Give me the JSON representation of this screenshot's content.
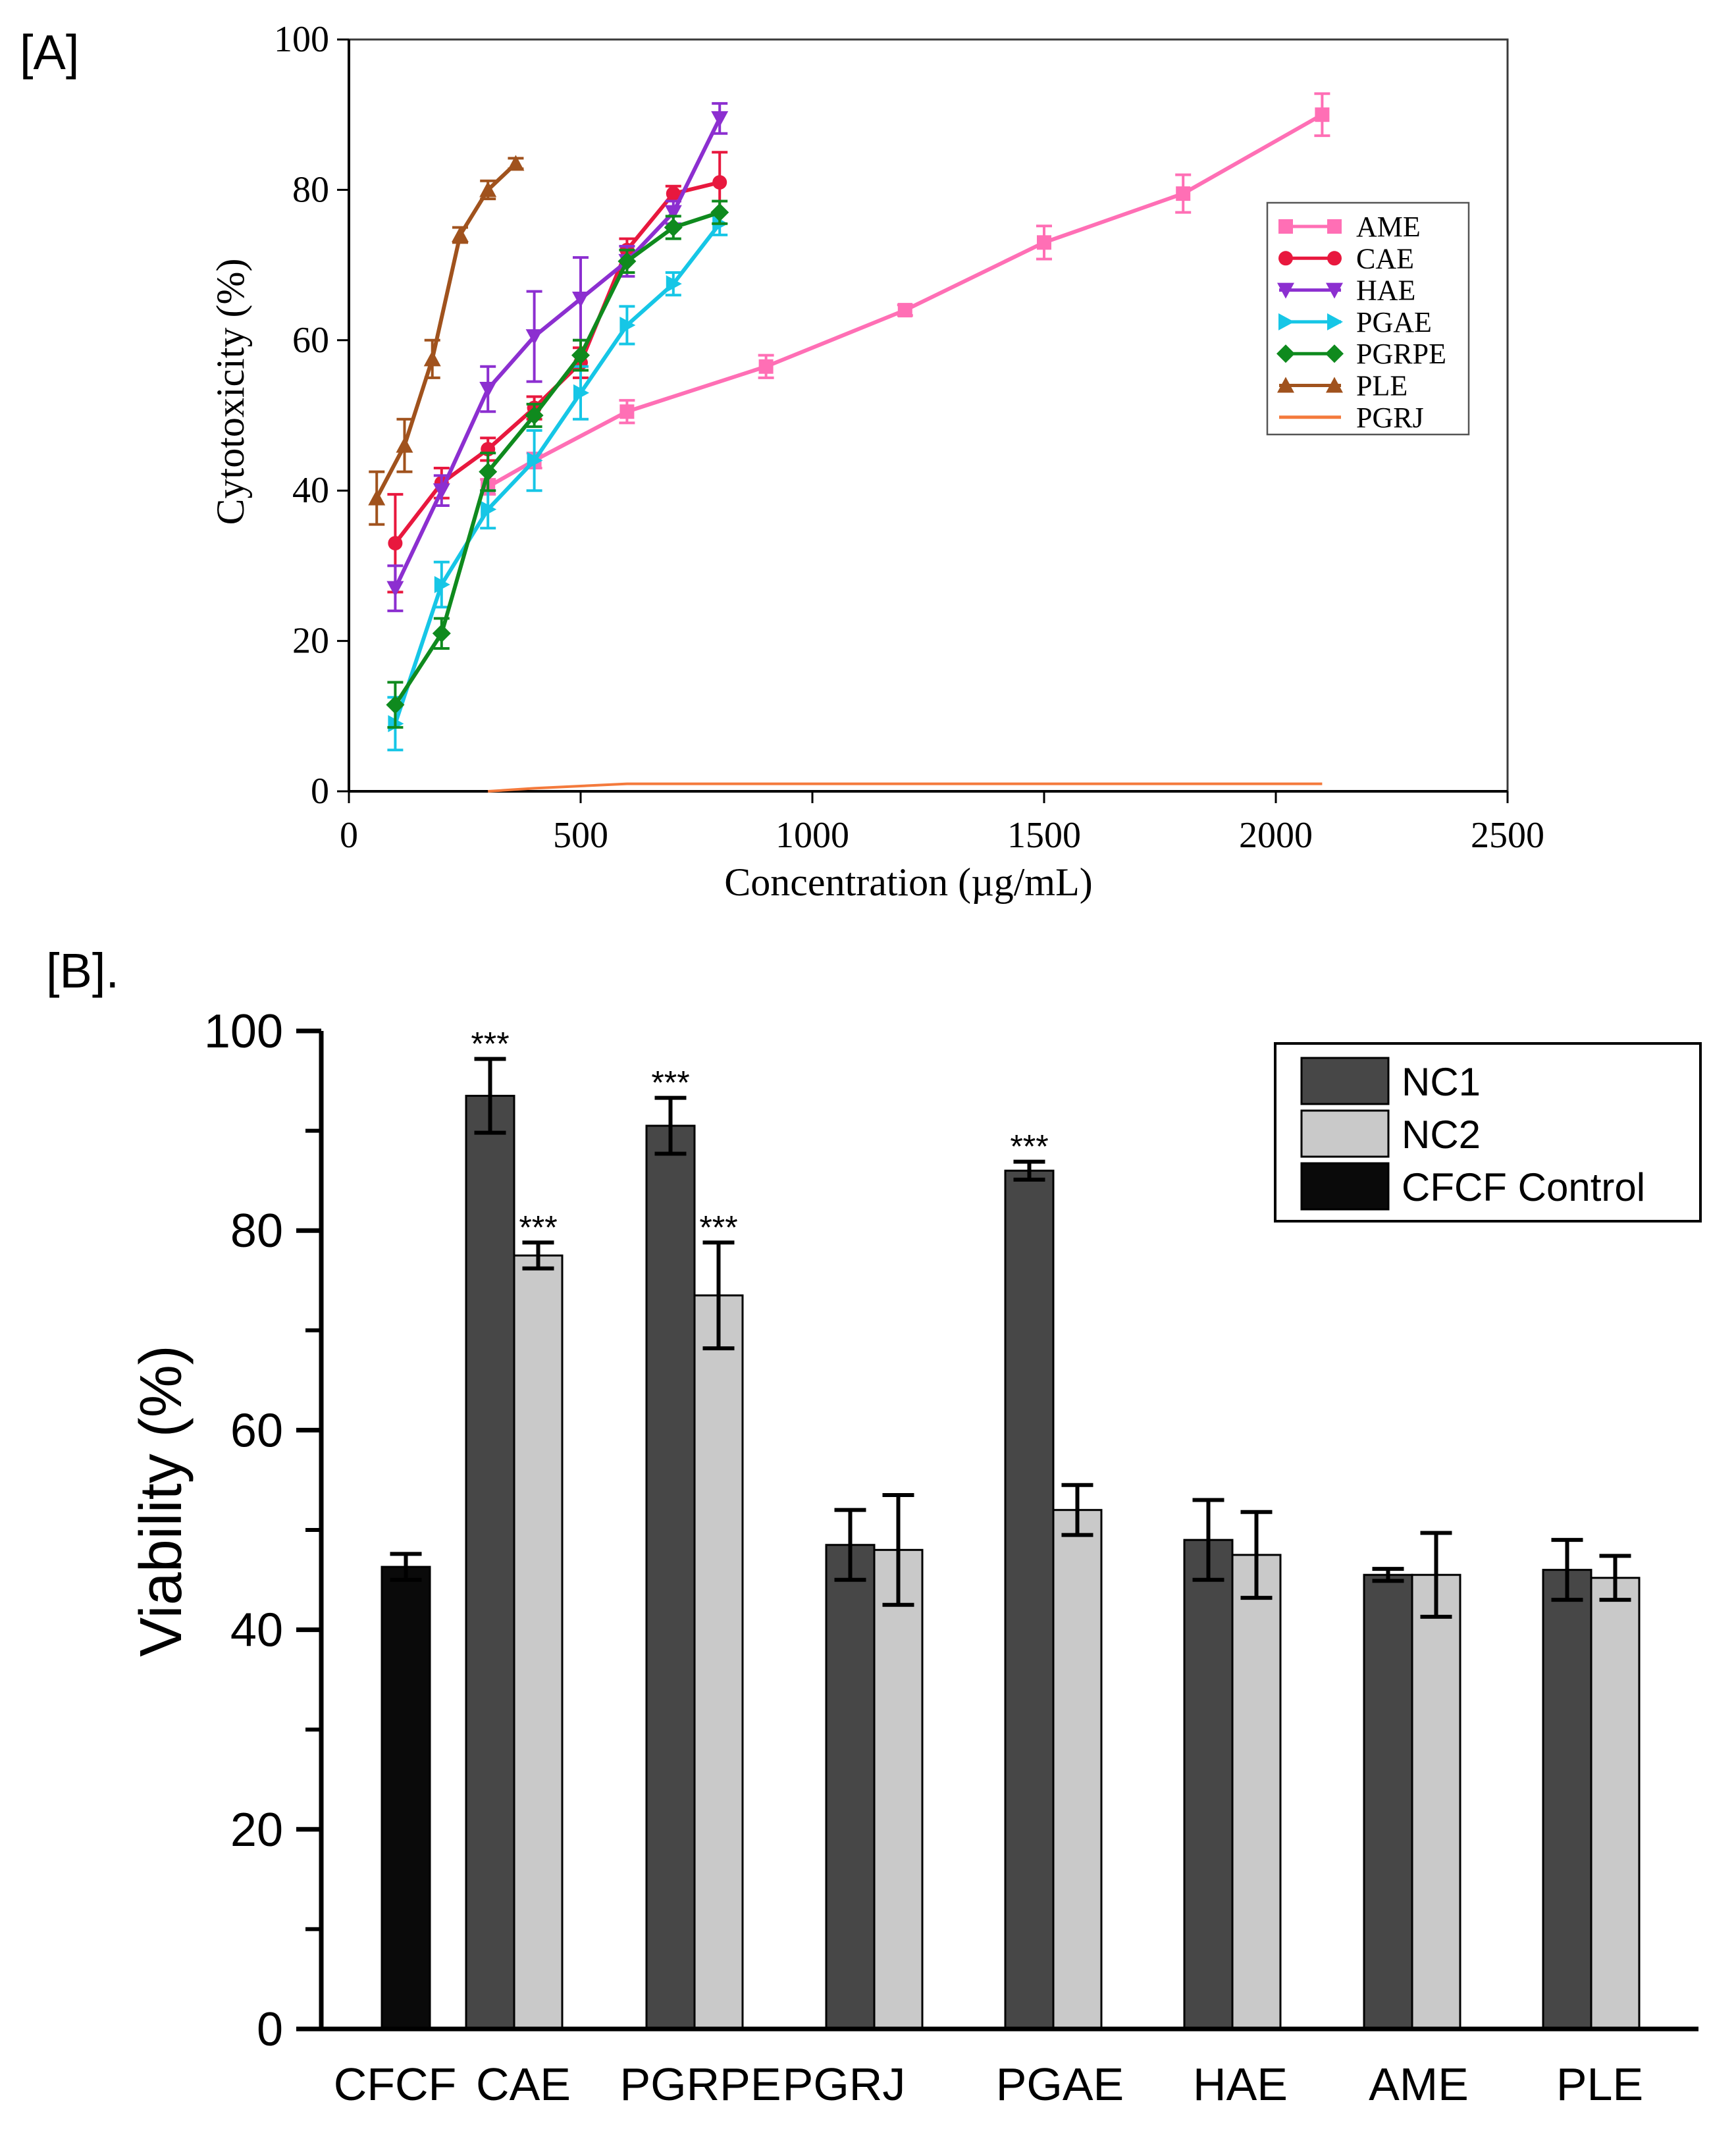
{
  "chart_data": [
    {
      "panel_label": "[A]",
      "type": "line",
      "title": "",
      "xlabel": "Concentration (µg/mL)",
      "ylabel": "Cytotoxicity (%)",
      "xlim": [
        0,
        2500
      ],
      "ylim": [
        0,
        100
      ],
      "xticks": [
        "0",
        "500",
        "1000",
        "1500",
        "2000",
        "2500"
      ],
      "yticks": [
        "0",
        "20",
        "40",
        "60",
        "80",
        "100"
      ],
      "legend_position": "right",
      "series": [
        {
          "name": "AME",
          "color": "#ff6fb5",
          "marker": "square",
          "x": [
            300,
            400,
            600,
            900,
            1200,
            1500,
            1800,
            2100
          ],
          "y": [
            40.5,
            44,
            50.5,
            56.5,
            64,
            73,
            79.5,
            90
          ],
          "err": [
            1,
            1,
            1.5,
            1.5,
            0.7,
            2.2,
            2.5,
            2.8
          ]
        },
        {
          "name": "CAE",
          "color": "#e8183e",
          "marker": "circle",
          "x": [
            100,
            200,
            300,
            400,
            500,
            600,
            700,
            800
          ],
          "y": [
            33,
            41,
            45.5,
            51,
            57,
            72,
            79.5,
            81
          ],
          "err": [
            6.5,
            2,
            1.5,
            1.5,
            2,
            1.5,
            1,
            4
          ]
        },
        {
          "name": "HAE",
          "color": "#8c2fd0",
          "marker": "triangle-down",
          "x": [
            100,
            200,
            300,
            400,
            500,
            600,
            700,
            800
          ],
          "y": [
            27,
            40,
            53.5,
            60.5,
            65.5,
            70.5,
            77,
            89.5
          ],
          "err": [
            3,
            2,
            3,
            6,
            5.5,
            2,
            1.5,
            2
          ]
        },
        {
          "name": "PGAE",
          "color": "#16c6e6",
          "marker": "triangle-right",
          "x": [
            100,
            200,
            300,
            400,
            500,
            600,
            700,
            800
          ],
          "y": [
            9,
            27.5,
            37.5,
            44,
            53,
            62,
            67.5,
            75.5
          ],
          "err": [
            3.5,
            3,
            2.5,
            4,
            3.5,
            2.5,
            1.5,
            1.5
          ]
        },
        {
          "name": "PGRPE",
          "color": "#0f8a1e",
          "marker": "diamond",
          "x": [
            100,
            200,
            300,
            400,
            500,
            600,
            700,
            800
          ],
          "y": [
            11.5,
            21,
            42.5,
            50,
            58,
            70.5,
            75,
            77
          ],
          "err": [
            3,
            2,
            2.5,
            1.5,
            2,
            1.5,
            1.5,
            1.5
          ]
        },
        {
          "name": "PLE",
          "color": "#a0521d",
          "marker": "triangle-up",
          "x": [
            60,
            120,
            180,
            240,
            300,
            360
          ],
          "y": [
            39,
            46,
            57.5,
            74,
            80,
            83.5
          ],
          "err": [
            3.5,
            3.5,
            2.5,
            1,
            1.2,
            0.7
          ]
        },
        {
          "name": "PGRJ",
          "color": "#f47a3c",
          "marker": "none",
          "x": [
            300,
            400,
            500,
            600,
            2100
          ],
          "y": [
            0,
            0.4,
            0.7,
            1,
            1
          ],
          "err": []
        }
      ]
    },
    {
      "panel_label": "[B].",
      "type": "bar",
      "title": "",
      "xlabel": "",
      "ylabel": "Viability (%)",
      "ylim": [
        0,
        100
      ],
      "yticks": [
        "0",
        "20",
        "40",
        "60",
        "80",
        "100"
      ],
      "categories": [
        "CFCF",
        "CAE",
        "PGRPE",
        "PGRJ",
        "PGAE",
        "HAE",
        "AME",
        "PLE"
      ],
      "legend_position": "top-right",
      "significance_marker": "***",
      "series": [
        {
          "name": "NC1",
          "color": "#474747",
          "values": [
            null,
            93.5,
            90.5,
            48.5,
            86,
            49,
            45.5,
            46
          ],
          "err": [
            null,
            3.7,
            2.8,
            3.5,
            0.9,
            4,
            0.6,
            3
          ],
          "significant": [
            false,
            true,
            true,
            false,
            true,
            false,
            false,
            false
          ]
        },
        {
          "name": "NC2",
          "color": "#c9c9c9",
          "values": [
            null,
            77.5,
            73.5,
            48,
            52,
            47.5,
            45.5,
            45.2
          ],
          "err": [
            null,
            1.3,
            5.3,
            5.5,
            2.5,
            4.3,
            4.2,
            2.2
          ],
          "significant": [
            false,
            true,
            true,
            false,
            false,
            false,
            false,
            false
          ]
        },
        {
          "name": "CFCF Control",
          "color": "#0a0a0a",
          "values": [
            46.3,
            null,
            null,
            null,
            null,
            null,
            null,
            null
          ],
          "err": [
            1.3,
            null,
            null,
            null,
            null,
            null,
            null,
            null
          ],
          "significant": [
            false,
            false,
            false,
            false,
            false,
            false,
            false,
            false
          ]
        }
      ]
    }
  ]
}
